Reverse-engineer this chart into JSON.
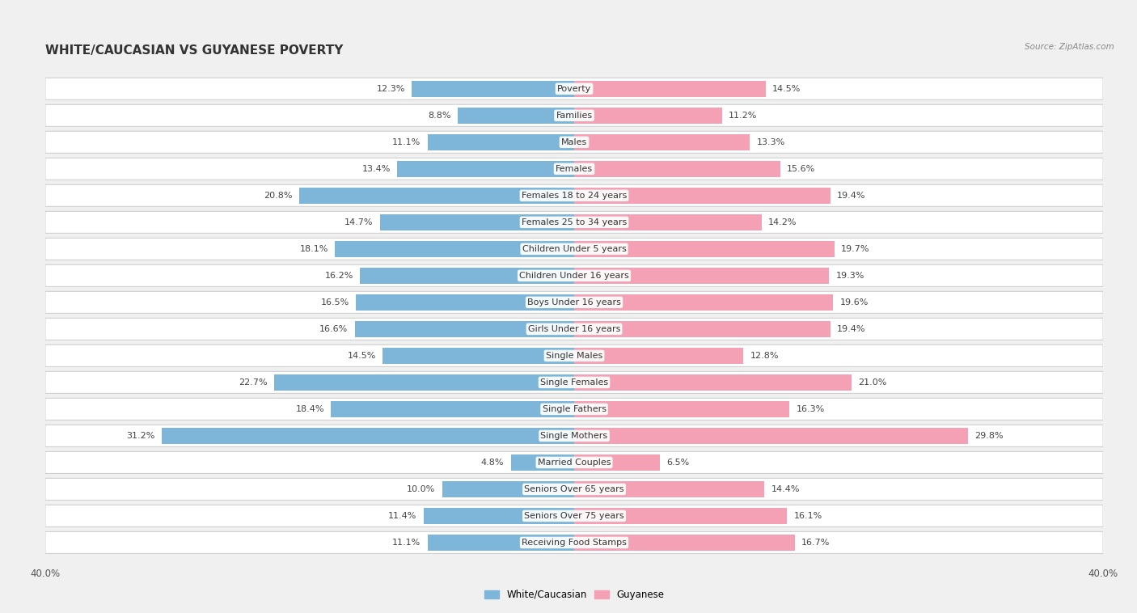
{
  "title": "WHITE/CAUCASIAN VS GUYANESE POVERTY",
  "source": "Source: ZipAtlas.com",
  "categories": [
    "Poverty",
    "Families",
    "Males",
    "Females",
    "Females 18 to 24 years",
    "Females 25 to 34 years",
    "Children Under 5 years",
    "Children Under 16 years",
    "Boys Under 16 years",
    "Girls Under 16 years",
    "Single Males",
    "Single Females",
    "Single Fathers",
    "Single Mothers",
    "Married Couples",
    "Seniors Over 65 years",
    "Seniors Over 75 years",
    "Receiving Food Stamps"
  ],
  "white_values": [
    12.3,
    8.8,
    11.1,
    13.4,
    20.8,
    14.7,
    18.1,
    16.2,
    16.5,
    16.6,
    14.5,
    22.7,
    18.4,
    31.2,
    4.8,
    10.0,
    11.4,
    11.1
  ],
  "guyanese_values": [
    14.5,
    11.2,
    13.3,
    15.6,
    19.4,
    14.2,
    19.7,
    19.3,
    19.6,
    19.4,
    12.8,
    21.0,
    16.3,
    29.8,
    6.5,
    14.4,
    16.1,
    16.7
  ],
  "white_color": "#7eb6d9",
  "guyanese_color": "#f4a0b5",
  "max_value": 40.0,
  "bg_color": "#f0f0f0",
  "row_light": "#ffffff",
  "row_border": "#d0d0d0",
  "title_fontsize": 11,
  "label_fontsize": 8,
  "value_fontsize": 8,
  "axis_label_fontsize": 8.5
}
